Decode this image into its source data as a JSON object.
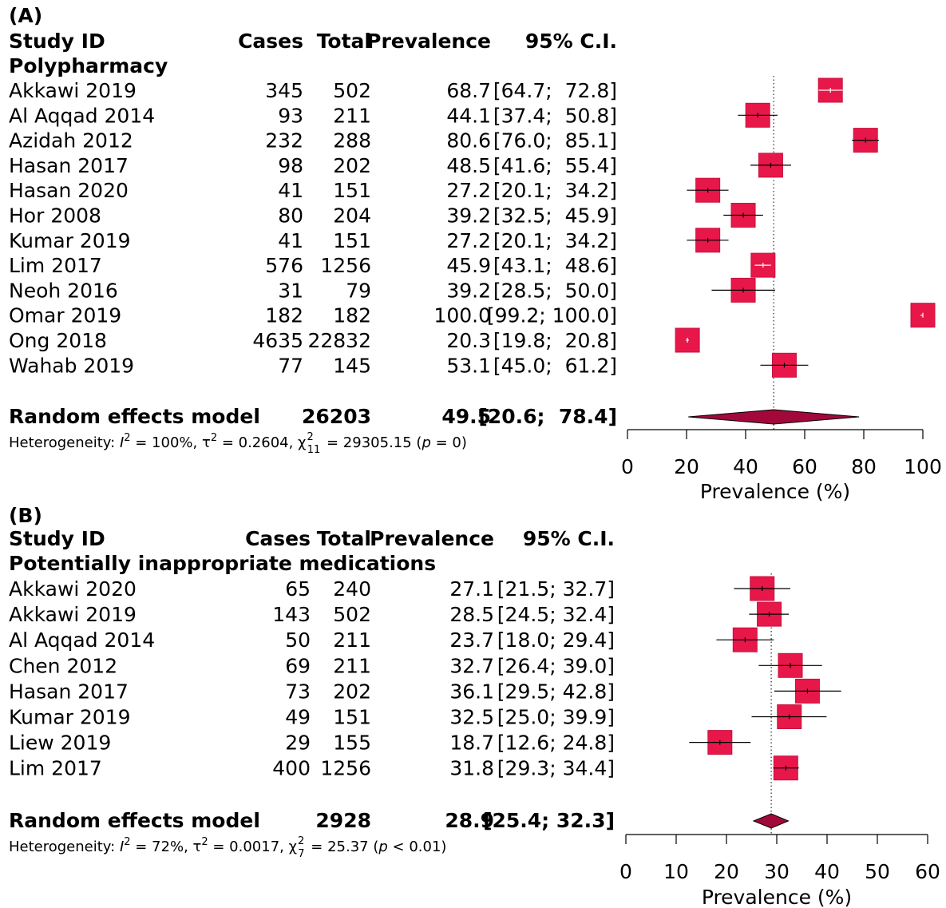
{
  "colors": {
    "box": "#E8174A",
    "box_edge": "#C8123D",
    "diamond": "#A3083B",
    "line": "#000000"
  },
  "chart_data": [
    {
      "type": "forest",
      "panel_label": "(A)",
      "headers": {
        "study": "Study ID",
        "cases": "Cases",
        "total": "Total",
        "prev": "Prevalence",
        "ci": "95% C.I."
      },
      "subgroup": "Polypharmacy",
      "xlabel": "Prevalence (%)",
      "xlim": [
        0,
        100
      ],
      "ticks": [
        "0",
        "20",
        "40",
        "60",
        "80",
        "100"
      ],
      "studies": [
        {
          "study": "Akkawi 2019",
          "cases": "345",
          "total": "502",
          "prev": "68.7",
          "ci": "[64.7;  72.8]",
          "est": 68.7,
          "lo": 64.7,
          "hi": 72.8
        },
        {
          "study": "Al Aqqad 2014",
          "cases": "93",
          "total": "211",
          "prev": "44.1",
          "ci": "[37.4;  50.8]",
          "est": 44.1,
          "lo": 37.4,
          "hi": 50.8
        },
        {
          "study": "Azidah 2012",
          "cases": "232",
          "total": "288",
          "prev": "80.6",
          "ci": "[76.0;  85.1]",
          "est": 80.6,
          "lo": 76.0,
          "hi": 85.1
        },
        {
          "study": "Hasan 2017",
          "cases": "98",
          "total": "202",
          "prev": "48.5",
          "ci": "[41.6;  55.4]",
          "est": 48.5,
          "lo": 41.6,
          "hi": 55.4
        },
        {
          "study": "Hasan 2020",
          "cases": "41",
          "total": "151",
          "prev": "27.2",
          "ci": "[20.1;  34.2]",
          "est": 27.2,
          "lo": 20.1,
          "hi": 34.2
        },
        {
          "study": "Hor 2008",
          "cases": "80",
          "total": "204",
          "prev": "39.2",
          "ci": "[32.5;  45.9]",
          "est": 39.2,
          "lo": 32.5,
          "hi": 45.9
        },
        {
          "study": "Kumar 2019",
          "cases": "41",
          "total": "151",
          "prev": "27.2",
          "ci": "[20.1;  34.2]",
          "est": 27.2,
          "lo": 20.1,
          "hi": 34.2
        },
        {
          "study": "Lim 2017",
          "cases": "576",
          "total": "1256",
          "prev": "45.9",
          "ci": "[43.1;  48.6]",
          "est": 45.9,
          "lo": 43.1,
          "hi": 48.6
        },
        {
          "study": "Neoh 2016",
          "cases": "31",
          "total": "79",
          "prev": "39.2",
          "ci": "[28.5;  50.0]",
          "est": 39.2,
          "lo": 28.5,
          "hi": 50.0
        },
        {
          "study": "Omar 2019",
          "cases": "182",
          "total": "182",
          "prev": "100.0",
          "ci": "[99.2; 100.0]",
          "est": 100.0,
          "lo": 99.2,
          "hi": 100.0
        },
        {
          "study": "Ong 2018",
          "cases": "4635",
          "total": "22832",
          "prev": "20.3",
          "ci": "[19.8;  20.8]",
          "est": 20.3,
          "lo": 19.8,
          "hi": 20.8
        },
        {
          "study": "Wahab 2019",
          "cases": "77",
          "total": "145",
          "prev": "53.1",
          "ci": "[45.0;  61.2]",
          "est": 53.1,
          "lo": 45.0,
          "hi": 61.2
        }
      ],
      "summary": {
        "label": "Random effects model",
        "total": "26203",
        "prev": "49.5",
        "ci": "[20.6;  78.4]",
        "est": 49.5,
        "lo": 20.6,
        "hi": 78.4
      },
      "heterogeneity": {
        "prefix": "Heterogeneity: ",
        "i2_value": " = 100%, ",
        "tau2_value": " = 0.2604, ",
        "chi_df": "11",
        "chi_value": " = 29305.15 (",
        "p_value": " = 0)"
      }
    },
    {
      "type": "forest",
      "panel_label": "(B)",
      "headers": {
        "study": "Study ID",
        "cases": "Cases",
        "total": "Total",
        "prev": "Prevalence",
        "ci": "95% C.I."
      },
      "subgroup": "Potentially inappropriate medications",
      "xlabel": "Prevalence (%)",
      "xlim": [
        0,
        60
      ],
      "ticks": [
        "0",
        "10",
        "20",
        "30",
        "40",
        "50",
        "60"
      ],
      "studies": [
        {
          "study": "Akkawi 2020",
          "cases": "65",
          "total": "240",
          "prev": "27.1",
          "ci": "[21.5; 32.7]",
          "est": 27.1,
          "lo": 21.5,
          "hi": 32.7
        },
        {
          "study": "Akkawi 2019",
          "cases": "143",
          "total": "502",
          "prev": "28.5",
          "ci": "[24.5; 32.4]",
          "est": 28.5,
          "lo": 24.5,
          "hi": 32.4
        },
        {
          "study": "Al Aqqad 2014",
          "cases": "50",
          "total": "211",
          "prev": "23.7",
          "ci": "[18.0; 29.4]",
          "est": 23.7,
          "lo": 18.0,
          "hi": 29.4
        },
        {
          "study": "Chen 2012",
          "cases": "69",
          "total": "211",
          "prev": "32.7",
          "ci": "[26.4; 39.0]",
          "est": 32.7,
          "lo": 26.4,
          "hi": 39.0
        },
        {
          "study": "Hasan 2017",
          "cases": "73",
          "total": "202",
          "prev": "36.1",
          "ci": "[29.5; 42.8]",
          "est": 36.1,
          "lo": 29.5,
          "hi": 42.8
        },
        {
          "study": "Kumar 2019",
          "cases": "49",
          "total": "151",
          "prev": "32.5",
          "ci": "[25.0; 39.9]",
          "est": 32.5,
          "lo": 25.0,
          "hi": 39.9
        },
        {
          "study": "Liew 2019",
          "cases": "29",
          "total": "155",
          "prev": "18.7",
          "ci": "[12.6; 24.8]",
          "est": 18.7,
          "lo": 12.6,
          "hi": 24.8
        },
        {
          "study": "Lim 2017",
          "cases": "400",
          "total": "1256",
          "prev": "31.8",
          "ci": "[29.3; 34.4]",
          "est": 31.8,
          "lo": 29.3,
          "hi": 34.4
        }
      ],
      "summary": {
        "label": "Random effects model",
        "total": "2928",
        "prev": "28.9",
        "ci": "[25.4; 32.3]",
        "est": 28.9,
        "lo": 25.4,
        "hi": 32.3
      },
      "heterogeneity": {
        "prefix": "Heterogeneity: ",
        "i2_value": " = 72%, ",
        "tau2_value": " = 0.0017, ",
        "chi_df": "7",
        "chi_value": " = 25.37 (",
        "p_value": " < 0.01)"
      }
    }
  ]
}
